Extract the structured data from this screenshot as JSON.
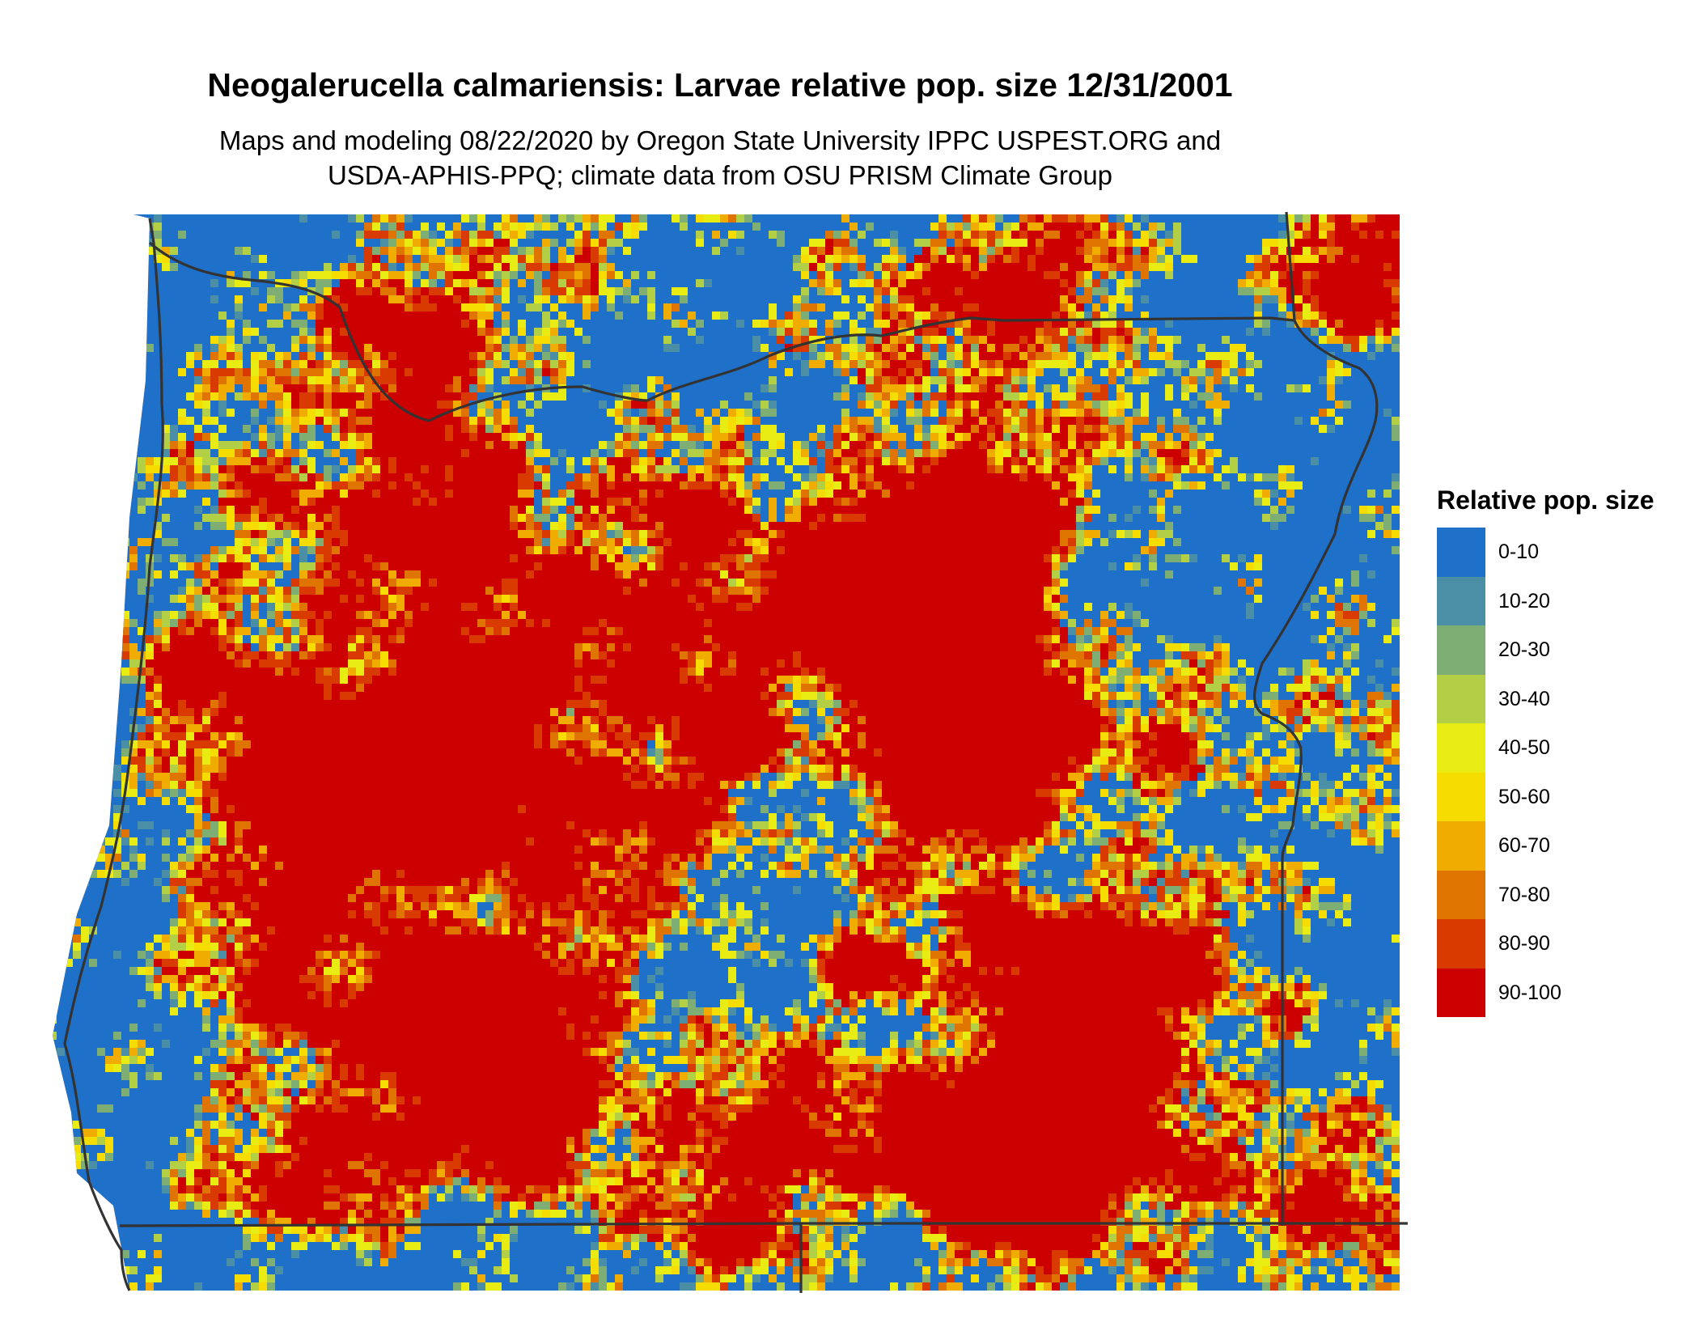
{
  "title": "Neogalerucella calmariensis: Larvae relative pop. size 12/31/2001",
  "subtitle_line1": "Maps and modeling 08/22/2020 by Oregon State University IPPC USPEST.ORG and",
  "subtitle_line2": "USDA-APHIS-PPQ; climate data from OSU PRISM Climate Group",
  "legend": {
    "title": "Relative pop. size",
    "classes": [
      {
        "label": "0-10",
        "color": "#1f70c9"
      },
      {
        "label": "10-20",
        "color": "#4a8fa6"
      },
      {
        "label": "20-30",
        "color": "#7fae74"
      },
      {
        "label": "30-40",
        "color": "#b3cf45"
      },
      {
        "label": "40-50",
        "color": "#e8ec12"
      },
      {
        "label": "50-60",
        "color": "#f7dc00"
      },
      {
        "label": "60-70",
        "color": "#f0ad00"
      },
      {
        "label": "70-80",
        "color": "#e07400"
      },
      {
        "label": "80-90",
        "color": "#d83a00"
      },
      {
        "label": "90-100",
        "color": "#cc0000"
      }
    ]
  },
  "map": {
    "region": "Oregon",
    "background_class": "0-10",
    "boundary_color": "#333333"
  }
}
